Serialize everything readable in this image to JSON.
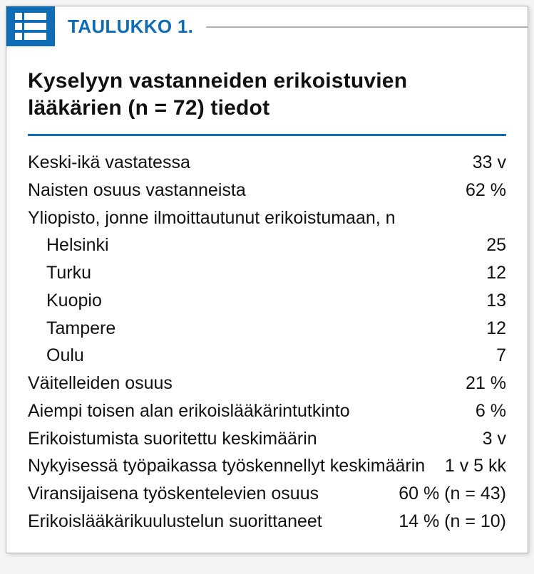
{
  "colors": {
    "accent": "#0e6db6",
    "border": "#b0b0b0",
    "text": "#111111",
    "background": "#ffffff"
  },
  "header": {
    "label": "TAULUKKO 1."
  },
  "title": "Kyselyyn vastanneiden erikoistuvien lääkärien (n = 72) tiedot",
  "rows": [
    {
      "label": "Keski-ikä vastatessa",
      "value": "33 v",
      "indent": false
    },
    {
      "label": "Naisten osuus vastanneista",
      "value": "62 %",
      "indent": false
    },
    {
      "label": "Yliopisto, jonne ilmoittautunut erikoistumaan, n",
      "value": "",
      "indent": false
    },
    {
      "label": "Helsinki",
      "value": "25",
      "indent": true
    },
    {
      "label": "Turku",
      "value": "12",
      "indent": true
    },
    {
      "label": "Kuopio",
      "value": "13",
      "indent": true
    },
    {
      "label": "Tampere",
      "value": "12",
      "indent": true
    },
    {
      "label": "Oulu",
      "value": "7",
      "indent": true
    },
    {
      "label": "Väitelleiden osuus",
      "value": "21 %",
      "indent": false
    },
    {
      "label": "Aiempi toisen alan erikoislääkärintutkinto",
      "value": "6 %",
      "indent": false
    },
    {
      "label": "Erikoistumista suoritettu keskimäärin",
      "value": "3 v",
      "indent": false
    },
    {
      "label": "Nykyisessä työpaikassa työskennellyt keskimäärin",
      "value": "1 v 5 kk",
      "indent": false
    },
    {
      "label": "Viransijaisena työskentelevien osuus",
      "value": "60 % (n = 43)",
      "indent": false
    },
    {
      "label": "Erikoislääkärikuulustelun suorittaneet",
      "value": "14 % (n = 10)",
      "indent": false
    }
  ]
}
